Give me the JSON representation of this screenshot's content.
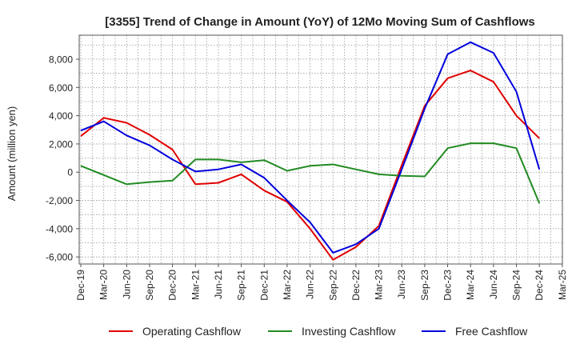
{
  "chart_data": {
    "type": "line",
    "title": "[3355]  Trend of Change in Amount (YoY) of 12Mo Moving Sum of Cashflows",
    "xlabel": "",
    "ylabel": "Amount (million yen)",
    "ylim": [
      -6500,
      9700
    ],
    "yticks": [
      -6000,
      -4000,
      -2000,
      0,
      2000,
      4000,
      6000,
      8000
    ],
    "ytick_labels": [
      "-6,000",
      "-4,000",
      "-2,000",
      "0",
      "2,000",
      "4,000",
      "6,000",
      "8,000"
    ],
    "categories": [
      "Dec-19",
      "Mar-20",
      "Jun-20",
      "Sep-20",
      "Dec-20",
      "Mar-21",
      "Jun-21",
      "Sep-21",
      "Dec-21",
      "Mar-22",
      "Jun-22",
      "Sep-22",
      "Dec-22",
      "Mar-23",
      "Jun-23",
      "Sep-23",
      "Dec-23",
      "Mar-24",
      "Jun-24",
      "Sep-24",
      "Dec-24",
      "Mar-25"
    ],
    "grid": true,
    "legend_position": "bottom",
    "series": [
      {
        "name": "Operating Cashflow",
        "color": "#e00000",
        "values": [
          2550,
          3850,
          3500,
          2650,
          1600,
          -850,
          -750,
          -150,
          -1300,
          -2100,
          -4000,
          -6200,
          -5300,
          -3800,
          500,
          4700,
          6650,
          7200,
          6400,
          4000,
          2400,
          null
        ]
      },
      {
        "name": "Investing Cashflow",
        "color": "#228b22",
        "values": [
          450,
          -200,
          -850,
          -700,
          -600,
          900,
          900,
          700,
          850,
          100,
          450,
          550,
          200,
          -150,
          -250,
          -300,
          1700,
          2050,
          2050,
          1700,
          -2200,
          null
        ]
      },
      {
        "name": "Free Cashflow",
        "color": "#0000dd",
        "values": [
          2950,
          3600,
          2600,
          1900,
          900,
          50,
          200,
          550,
          -400,
          -2000,
          -3550,
          -5700,
          -5100,
          -4000,
          200,
          4500,
          8350,
          9200,
          8450,
          5700,
          200,
          null
        ]
      }
    ]
  }
}
